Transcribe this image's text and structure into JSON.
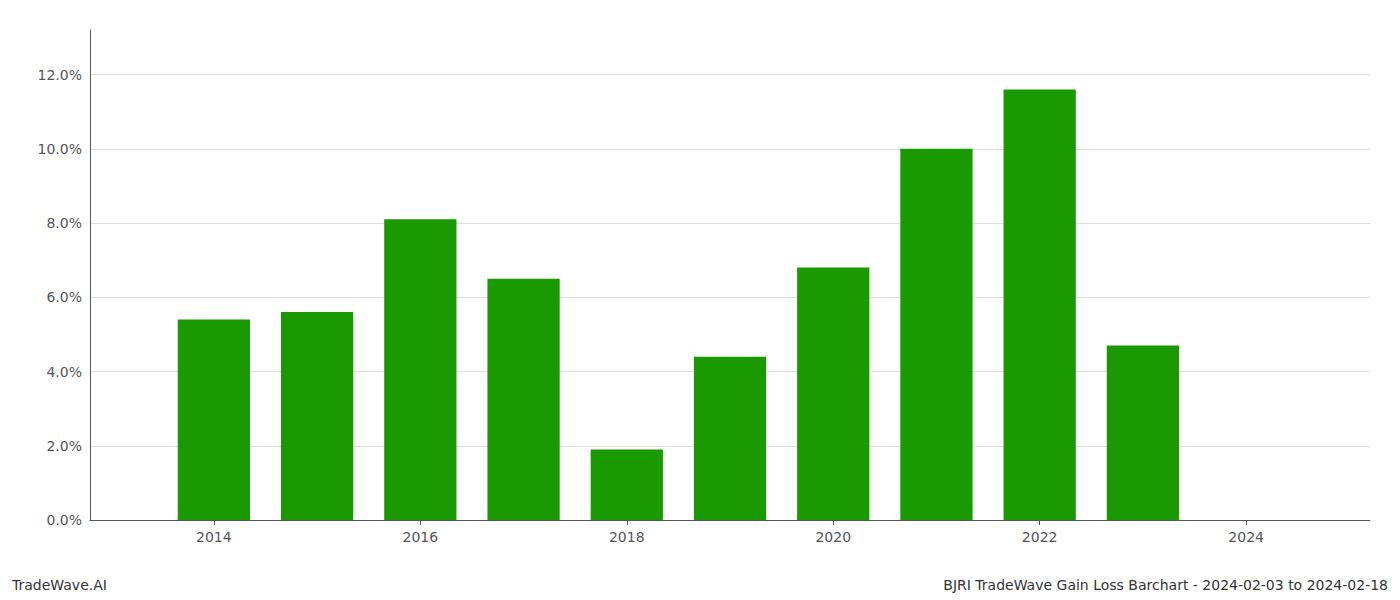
{
  "chart_data": {
    "type": "bar",
    "annotations": [
      "TradeWave.AI",
      "BJRI TradeWave Gain Loss Barchart - 2024-02-03 to 2024-02-18"
    ],
    "x": [
      2014,
      2015,
      2016,
      2017,
      2018,
      2019,
      2020,
      2021,
      2022,
      2023
    ],
    "values": [
      0.054,
      0.056,
      0.081,
      0.065,
      0.019,
      0.044,
      0.068,
      0.1,
      0.116,
      0.047
    ],
    "color": "#1a9a00",
    "xlim": [
      2012.8,
      2025.2
    ],
    "xticks": [
      2014,
      2016,
      2018,
      2020,
      2022,
      2024
    ],
    "ylim": [
      0.0,
      0.132
    ],
    "yticks": [
      {
        "value": 0.0,
        "label": "0.0%"
      },
      {
        "value": 0.02,
        "label": "2.0%"
      },
      {
        "value": 0.04,
        "label": "4.0%"
      },
      {
        "value": 0.06,
        "label": "6.0%"
      },
      {
        "value": 0.08,
        "label": "8.0%"
      },
      {
        "value": 0.1,
        "label": "10.0%"
      },
      {
        "value": 0.12,
        "label": "12.0%"
      }
    ],
    "grid": true
  }
}
